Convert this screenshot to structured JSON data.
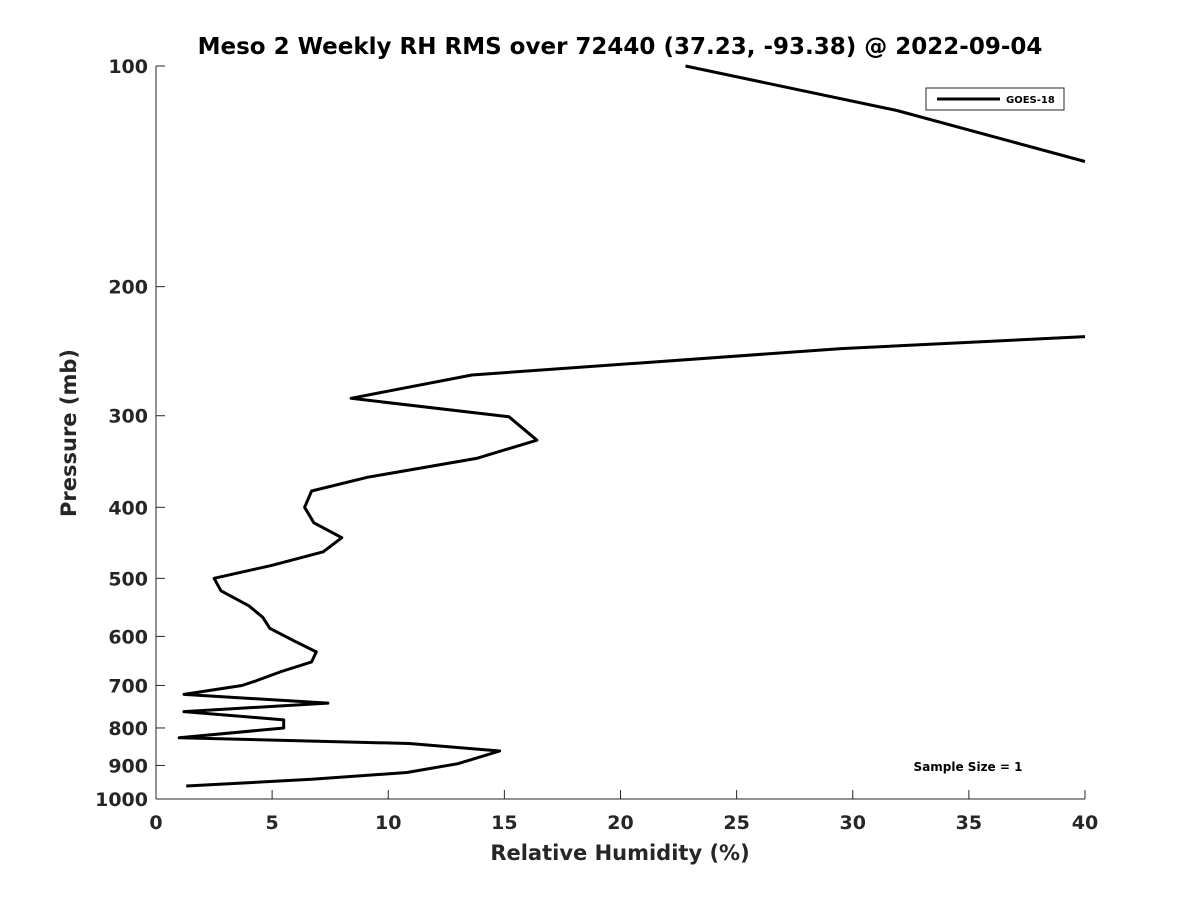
{
  "chart_data": {
    "type": "line",
    "title": "Meso 2 Weekly RH RMS over 72440 (37.23, -93.38) @ 2022-09-04",
    "xlabel": "Relative Humidity (%)",
    "ylabel": "Pressure (mb)",
    "xlim": [
      0,
      40
    ],
    "ylim": [
      100,
      1000
    ],
    "yscale": "log",
    "y_reversed": true,
    "xticks": [
      0,
      5,
      10,
      15,
      20,
      25,
      30,
      35,
      40
    ],
    "xtick_labels": [
      "0",
      "5",
      "10",
      "15",
      "20",
      "25",
      "30",
      "35",
      "40"
    ],
    "yticks": [
      100,
      200,
      300,
      400,
      500,
      600,
      700,
      800,
      900,
      1000
    ],
    "ytick_labels": [
      "100",
      "200",
      "300",
      "400",
      "500",
      "600",
      "700",
      "800",
      "900",
      "1000"
    ],
    "grid": false,
    "legend": {
      "position": "top-right",
      "entries": [
        "GOES-18"
      ]
    },
    "annotations": [
      {
        "text": "Sample Size = 1",
        "position": "bottom-right"
      }
    ],
    "series": [
      {
        "name": "GOES-18",
        "color": "#000000",
        "segments": [
          {
            "x": [
              22.8,
              31.9,
              40.0
            ],
            "y": [
              100,
              115,
              135
            ]
          },
          {
            "x": [
              40.0,
              29.5,
              13.6,
              8.4,
              15.2,
              16.4,
              13.8,
              9.1,
              6.7,
              6.4,
              6.8,
              8.0,
              7.2,
              5.0,
              2.5,
              2.8,
              4.0,
              4.6,
              4.9,
              6.0,
              6.9,
              6.7,
              5.4,
              4.3,
              3.7,
              1.2,
              7.4,
              1.2,
              5.5,
              5.5,
              1.0,
              10.9,
              14.8,
              13.0,
              10.8,
              6.7,
              1.3
            ],
            "y": [
              234,
              243,
              264,
              284,
              301,
              324,
              343,
              364,
              380,
              400,
              420,
              440,
              460,
              480,
              500,
              520,
              545,
              565,
              585,
              610,
              630,
              650,
              670,
              690,
              700,
              720,
              740,
              760,
              780,
              800,
              825,
              840,
              860,
              895,
              920,
              940,
              960
            ]
          }
        ]
      }
    ]
  }
}
